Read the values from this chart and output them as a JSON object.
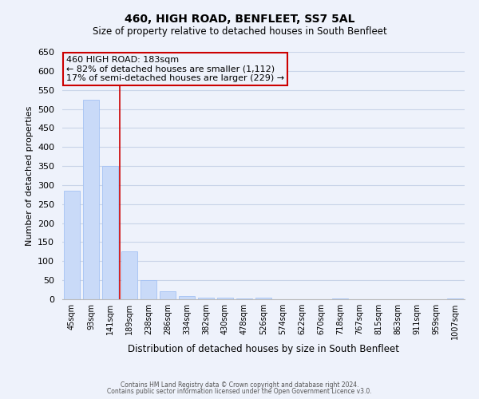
{
  "title": "460, HIGH ROAD, BENFLEET, SS7 5AL",
  "subtitle": "Size of property relative to detached houses in South Benfleet",
  "xlabel": "Distribution of detached houses by size in South Benfleet",
  "ylabel": "Number of detached properties",
  "footer_line1": "Contains HM Land Registry data © Crown copyright and database right 2024.",
  "footer_line2": "Contains public sector information licensed under the Open Government Licence v3.0.",
  "bin_labels": [
    "45sqm",
    "93sqm",
    "141sqm",
    "189sqm",
    "238sqm",
    "286sqm",
    "334sqm",
    "382sqm",
    "430sqm",
    "478sqm",
    "526sqm",
    "574sqm",
    "622sqm",
    "670sqm",
    "718sqm",
    "767sqm",
    "815sqm",
    "863sqm",
    "911sqm",
    "959sqm",
    "1007sqm"
  ],
  "bin_values": [
    285,
    525,
    350,
    125,
    50,
    20,
    8,
    5,
    5,
    2,
    5,
    0,
    0,
    0,
    2,
    0,
    0,
    0,
    0,
    0,
    2
  ],
  "bar_color": "#c9daf8",
  "bar_edgecolor": "#a4c2f4",
  "property_line_color": "#cc0000",
  "property_line_index": 2.5,
  "annotation_text_line1": "460 HIGH ROAD: 183sqm",
  "annotation_text_line2": "← 82% of detached houses are smaller (1,112)",
  "annotation_text_line3": "17% of semi-detached houses are larger (229) →",
  "annotation_box_edgecolor": "#cc0000",
  "ylim": [
    0,
    650
  ],
  "yticks": [
    0,
    50,
    100,
    150,
    200,
    250,
    300,
    350,
    400,
    450,
    500,
    550,
    600,
    650
  ],
  "grid_color": "#c9d4e8",
  "bg_color": "#eef2fb",
  "title_fontsize": 10,
  "subtitle_fontsize": 8.5,
  "ylabel_fontsize": 8,
  "xlabel_fontsize": 8.5,
  "tick_fontsize": 7,
  "footer_fontsize": 5.5,
  "ann_fontsize": 8
}
